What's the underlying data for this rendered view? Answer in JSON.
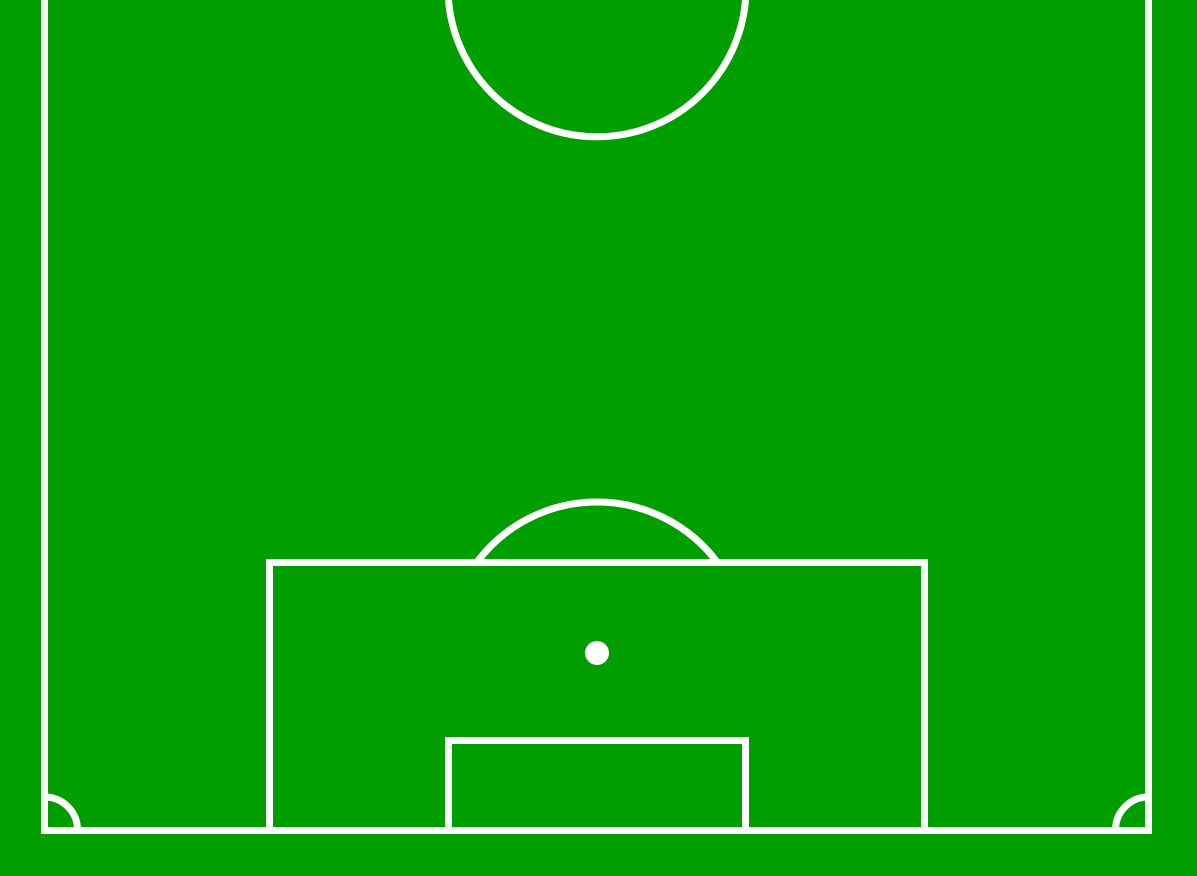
{
  "pitch": {
    "grass_color": "#019e00",
    "line_color": "#ffffff",
    "view": "half-pitch",
    "orientation": "goal-at-bottom",
    "markings": [
      "touchline-left",
      "touchline-right",
      "goal-line",
      "center-circle-arc",
      "penalty-area",
      "goal-area",
      "penalty-spot",
      "penalty-arc",
      "corner-arc-left",
      "corner-arc-right"
    ]
  }
}
